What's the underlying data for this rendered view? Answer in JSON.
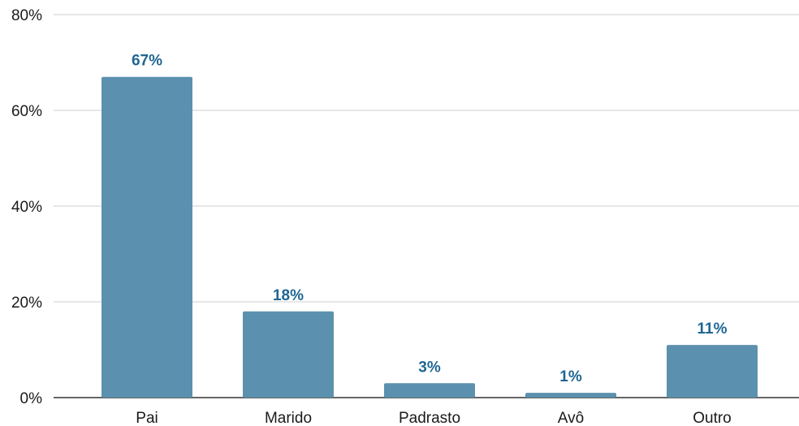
{
  "chart_data": {
    "type": "bar",
    "title": "",
    "xlabel": "",
    "ylabel": "",
    "categories": [
      "Pai",
      "Marido",
      "Padrasto",
      "Avô",
      "Outro"
    ],
    "values": [
      67,
      18,
      3,
      1,
      11
    ],
    "value_labels": [
      "67%",
      "18%",
      "3%",
      "1%",
      "11%"
    ],
    "ylim": [
      0,
      80
    ],
    "y_ticks": [
      0,
      20,
      40,
      60,
      80
    ],
    "y_tick_labels": [
      "0%",
      "20%",
      "40%",
      "60%",
      "80%"
    ],
    "grid": true,
    "legend": "none",
    "colors": {
      "bar": "#5b91ae",
      "value_label": "#1f6694",
      "grid": "#cfcfcf",
      "axis": "#333333"
    }
  }
}
